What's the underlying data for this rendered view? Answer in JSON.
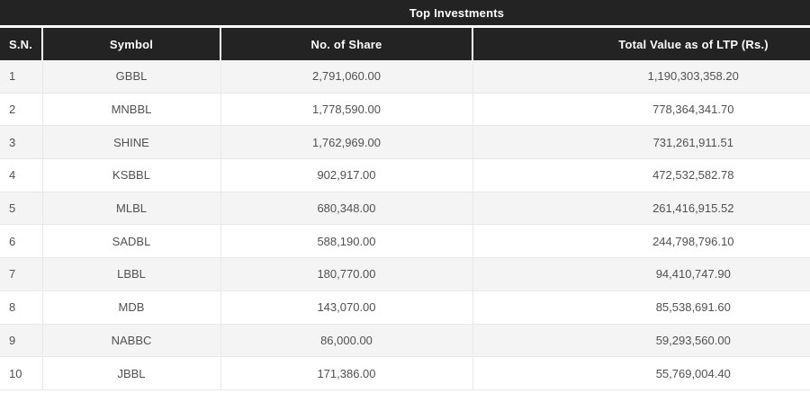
{
  "colors": {
    "header_bg": "#232323",
    "header_text": "#ffffff",
    "separator_light": "#fbfbfb",
    "row_alt_bg": "#f4f4f4",
    "row_bg": "#ffffff",
    "body_text": "#515151",
    "body_border": "#e8e8e8"
  },
  "table": {
    "title": "Top Investments",
    "columns": [
      "S.N.",
      "Symbol",
      "No. of Share",
      "Total Value as of LTP (Rs.)"
    ],
    "rows": [
      {
        "sn": "1",
        "symbol": "GBBL",
        "shares": "2,791,060.00",
        "total_value": "1,190,303,358.20"
      },
      {
        "sn": "2",
        "symbol": "MNBBL",
        "shares": "1,778,590.00",
        "total_value": "778,364,341.70"
      },
      {
        "sn": "3",
        "symbol": "SHINE",
        "shares": "1,762,969.00",
        "total_value": "731,261,911.51"
      },
      {
        "sn": "4",
        "symbol": "KSBBL",
        "shares": "902,917.00",
        "total_value": "472,532,582.78"
      },
      {
        "sn": "5",
        "symbol": "MLBL",
        "shares": "680,348.00",
        "total_value": "261,416,915.52"
      },
      {
        "sn": "6",
        "symbol": "SADBL",
        "shares": "588,190.00",
        "total_value": "244,798,796.10"
      },
      {
        "sn": "7",
        "symbol": "LBBL",
        "shares": "180,770.00",
        "total_value": "94,410,747.90"
      },
      {
        "sn": "8",
        "symbol": "MDB",
        "shares": "143,070.00",
        "total_value": "85,538,691.60"
      },
      {
        "sn": "9",
        "symbol": "NABBC",
        "shares": "86,000.00",
        "total_value": "59,293,560.00"
      },
      {
        "sn": "10",
        "symbol": "JBBL",
        "shares": "171,386.00",
        "total_value": "55,769,004.40"
      }
    ]
  },
  "chart_data": {
    "type": "table",
    "title": "Top Investments",
    "columns": [
      "S.N.",
      "Symbol",
      "No. of Share",
      "Total Value as of LTP (Rs.)"
    ],
    "rows": [
      [
        "1",
        "GBBL",
        "2,791,060.00",
        "1,190,303,358.20"
      ],
      [
        "2",
        "MNBBL",
        "1,778,590.00",
        "778,364,341.70"
      ],
      [
        "3",
        "SHINE",
        "1,762,969.00",
        "731,261,911.51"
      ],
      [
        "4",
        "KSBBL",
        "902,917.00",
        "472,532,582.78"
      ],
      [
        "5",
        "MLBL",
        "680,348.00",
        "261,416,915.52"
      ],
      [
        "6",
        "SADBL",
        "588,190.00",
        "244,798,796.10"
      ],
      [
        "7",
        "LBBL",
        "180,770.00",
        "94,410,747.90"
      ],
      [
        "8",
        "MDB",
        "143,070.00",
        "85,538,691.60"
      ],
      [
        "9",
        "NABBC",
        "86,000.00",
        "59,293,560.00"
      ],
      [
        "10",
        "JBBL",
        "171,386.00",
        "55,769,004.40"
      ]
    ]
  }
}
